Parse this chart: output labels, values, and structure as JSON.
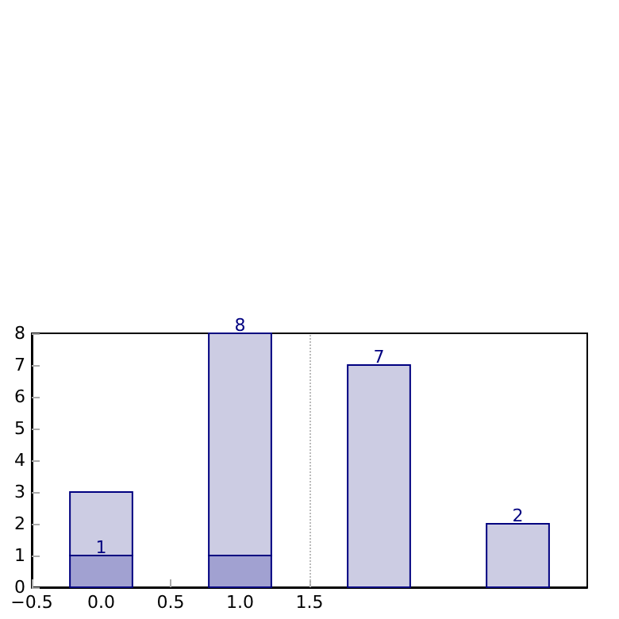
{
  "chart_data": {
    "type": "bar",
    "x": [
      0,
      1,
      2,
      3
    ],
    "stacked": true,
    "series": [
      {
        "color": "#a1a1d1",
        "values": [
          1,
          1,
          null,
          null
        ],
        "value_labels": [
          "1",
          null,
          null,
          null
        ]
      },
      {
        "color": "#cccce3",
        "values": [
          2,
          7,
          7,
          2
        ]
      }
    ],
    "totals": [
      null,
      "8",
      "7",
      "2"
    ],
    "xlim": [
      -0.5,
      3.5
    ],
    "xticks": [
      -0.5,
      {
        "value": 0,
        "label": "0.0"
      },
      0.5,
      {
        "value": 1,
        "label": "1.0"
      },
      1.5
    ],
    "ylim": [
      0,
      8
    ],
    "yticks": [
      0,
      1,
      2,
      3,
      4,
      5,
      6,
      7,
      8
    ],
    "ref_lines": [
      {
        "axis": "x",
        "value": 1.5,
        "color": "#bbbbbb",
        "line_style": "dotted"
      }
    ],
    "grid": false
  }
}
